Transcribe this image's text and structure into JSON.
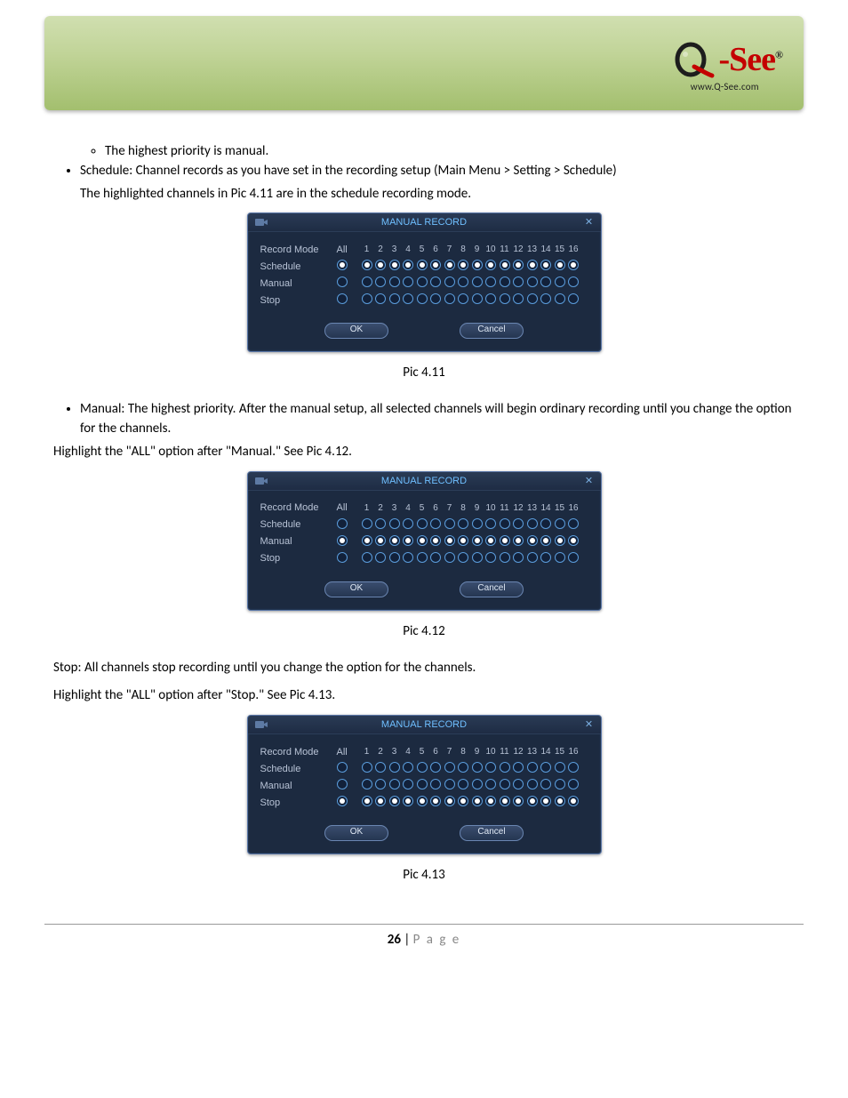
{
  "logo": {
    "brand_prefix": "-",
    "brand_word": "See",
    "url": "www.Q-See.com"
  },
  "sub_list_item": "The highest priority is manual.",
  "bullet1_open": "Schedule: ",
  "bullet1_text": "Channel records as you have set in the recording setup (Main Menu > Setting > Schedule)",
  "fig1": "The highlighted channels in Pic 4.11 are in the schedule recording mode.",
  "caption1": "Pic 4.11",
  "bullet2_open": "Manual:",
  "bullet2_text": " The highest priority. After the manual setup, all selected channels will begin ordinary recording until you change the option for the channels.",
  "between_para": "Highlight the \"ALL\" option after \"Manual.\" See Pic 4.12.",
  "caption2": "Pic 4.12",
  "stop_label": "Stop: ",
  "stop_text": "All channels stop recording until you change the option for the channels.",
  "stop_para2": "Highlight the \"ALL\" option after \"Stop.\" See Pic 4.13.",
  "caption3": "Pic 4.13",
  "page_num": "26",
  "page_word": "P a g e",
  "dialog": {
    "title": "MANUAL RECORD",
    "row_labels": {
      "mode": "Record Mode",
      "schedule": "Schedule",
      "manual": "Manual",
      "stop": "Stop"
    },
    "all_label": "All",
    "channels": [
      "1",
      "2",
      "3",
      "4",
      "5",
      "6",
      "7",
      "8",
      "9",
      "10",
      "11",
      "12",
      "13",
      "14",
      "15",
      "16"
    ],
    "ok": "OK",
    "cancel": "Cancel",
    "instance1": {
      "all_selected": "schedule",
      "rows": {
        "schedule": [
          1,
          1,
          1,
          1,
          1,
          1,
          1,
          1,
          1,
          1,
          1,
          1,
          1,
          1,
          1,
          1
        ],
        "manual": [
          0,
          0,
          0,
          0,
          0,
          0,
          0,
          0,
          0,
          0,
          0,
          0,
          0,
          0,
          0,
          0
        ],
        "stop": [
          0,
          0,
          0,
          0,
          0,
          0,
          0,
          0,
          0,
          0,
          0,
          0,
          0,
          0,
          0,
          0
        ]
      }
    },
    "instance2": {
      "all_selected": "manual",
      "rows": {
        "schedule": [
          0,
          0,
          0,
          0,
          0,
          0,
          0,
          0,
          0,
          0,
          0,
          0,
          0,
          0,
          0,
          0
        ],
        "manual": [
          1,
          1,
          1,
          1,
          1,
          1,
          1,
          1,
          1,
          1,
          1,
          1,
          1,
          1,
          1,
          1
        ],
        "stop": [
          0,
          0,
          0,
          0,
          0,
          0,
          0,
          0,
          0,
          0,
          0,
          0,
          0,
          0,
          0,
          0
        ]
      }
    },
    "instance3": {
      "all_selected": "stop",
      "rows": {
        "schedule": [
          0,
          0,
          0,
          0,
          0,
          0,
          0,
          0,
          0,
          0,
          0,
          0,
          0,
          0,
          0,
          0
        ],
        "manual": [
          0,
          0,
          0,
          0,
          0,
          0,
          0,
          0,
          0,
          0,
          0,
          0,
          0,
          0,
          0,
          0
        ],
        "stop": [
          1,
          1,
          1,
          1,
          1,
          1,
          1,
          1,
          1,
          1,
          1,
          1,
          1,
          1,
          1,
          1
        ]
      }
    }
  }
}
